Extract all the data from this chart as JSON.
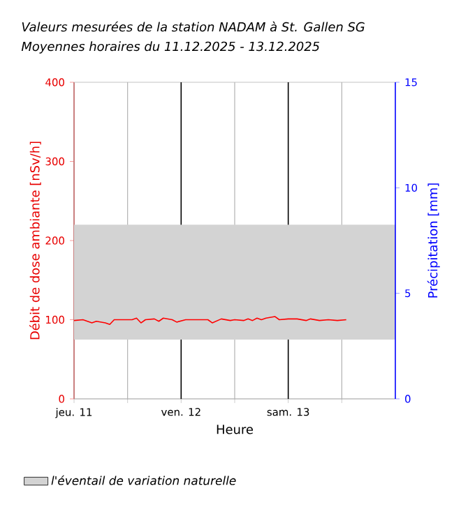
{
  "chart_data": {
    "type": "line",
    "title": "Valeurs mesurées de la station NADAM à St. Gallen SG",
    "subtitle": "Moyennes horaires du 11.12.2025 - 13.12.2025",
    "xlabel": "Heure",
    "ylabel": "Débit de dose ambiante [nSv/h]",
    "y2label": "Précipitation [mm]",
    "xlim": [
      "2025-12-11T00:00",
      "2025-12-14T00:00"
    ],
    "xticks": [
      {
        "value": "2025-12-11T00:00",
        "label": "jeu. 11"
      },
      {
        "value": "2025-12-11T12:00",
        "label": null
      },
      {
        "value": "2025-12-12T00:00",
        "label": "ven. 12"
      },
      {
        "value": "2025-12-12T12:00",
        "label": null
      },
      {
        "value": "2025-12-13T00:00",
        "label": "sam. 13"
      },
      {
        "value": "2025-12-13T12:00",
        "label": null
      }
    ],
    "ylim": [
      0,
      400
    ],
    "yticks": [
      0,
      100,
      200,
      300,
      400
    ],
    "y2lim": [
      0,
      15
    ],
    "y2ticks": [
      0,
      5,
      10,
      15
    ],
    "series": [
      {
        "color": "#ff0000",
        "x": [
          "2025-12-11T00:00",
          "2025-12-11T02:00",
          "2025-12-11T04:00",
          "2025-12-11T05:00",
          "2025-12-11T07:00",
          "2025-12-11T08:00",
          "2025-12-11T09:00",
          "2025-12-11T13:00",
          "2025-12-11T14:00",
          "2025-12-11T15:00",
          "2025-12-11T16:00",
          "2025-12-11T18:00",
          "2025-12-11T19:00",
          "2025-12-11T20:00",
          "2025-12-11T22:00",
          "2025-12-11T23:00",
          "2025-12-12T01:00",
          "2025-12-12T06:00",
          "2025-12-12T07:00",
          "2025-12-12T09:00",
          "2025-12-12T11:00",
          "2025-12-12T12:00",
          "2025-12-12T14:00",
          "2025-12-12T15:00",
          "2025-12-12T16:00",
          "2025-12-12T17:00",
          "2025-12-12T18:00",
          "2025-12-12T19:00",
          "2025-12-12T21:00",
          "2025-12-12T22:00",
          "2025-12-13T00:00",
          "2025-12-13T02:00",
          "2025-12-13T04:00",
          "2025-12-13T05:00",
          "2025-12-13T07:00",
          "2025-12-13T09:00",
          "2025-12-13T11:00",
          "2025-12-13T13:00"
        ],
        "values": [
          99,
          100,
          96,
          98,
          96,
          94,
          100,
          100,
          102,
          96,
          100,
          101,
          98,
          102,
          100,
          97,
          100,
          100,
          96,
          101,
          99,
          100,
          99,
          101,
          99,
          102,
          100,
          102,
          104,
          100,
          101,
          101,
          99,
          101,
          99,
          100,
          99,
          100
        ]
      }
    ],
    "bands": [
      {
        "axis": "y",
        "from": 75,
        "to": 220,
        "label": "l'éventail de variation naturelle",
        "color": "#d3d3d3"
      }
    ],
    "grid": "x",
    "legend": "bottom",
    "marker": "none",
    "line_style": "solid"
  }
}
